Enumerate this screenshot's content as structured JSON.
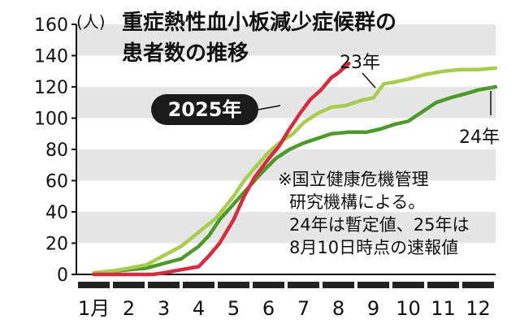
{
  "chart_data": {
    "type": "line",
    "title": "重症熱性血小板減少症候群の患者数の推移",
    "unit_label": "(人)",
    "ylim": [
      0,
      160
    ],
    "yticks": [
      "0",
      "20",
      "40",
      "60",
      "80",
      "100",
      "120",
      "140",
      "160"
    ],
    "month_labels": [
      "1月",
      "2",
      "3",
      "4",
      "5",
      "6",
      "7",
      "8",
      "9",
      "10",
      "11",
      "12"
    ],
    "grid": "alternating horizontal bands",
    "note_lines": [
      "※国立健康危機管理",
      "研究機構による。",
      "24年は暫定値、25年は",
      "8月10日時点の速報値"
    ],
    "series": [
      {
        "name": "24年",
        "color": "#4c9a2a",
        "width": 4.5,
        "points": [
          [
            0,
            1
          ],
          [
            0.5,
            2
          ],
          [
            1,
            3
          ],
          [
            1.5,
            4
          ],
          [
            2,
            7
          ],
          [
            2.5,
            10
          ],
          [
            3,
            18
          ],
          [
            3.3,
            25
          ],
          [
            3.6,
            35
          ],
          [
            4,
            45
          ],
          [
            4.4,
            55
          ],
          [
            4.8,
            65
          ],
          [
            5.2,
            74
          ],
          [
            5.6,
            80
          ],
          [
            6,
            84
          ],
          [
            6.4,
            87
          ],
          [
            6.8,
            90
          ],
          [
            7.3,
            91
          ],
          [
            7.8,
            91
          ],
          [
            8.2,
            93
          ],
          [
            8.6,
            96
          ],
          [
            9,
            98
          ],
          [
            9.4,
            104
          ],
          [
            9.8,
            110
          ],
          [
            10.2,
            113
          ],
          [
            10.7,
            116
          ],
          [
            11,
            118
          ],
          [
            11.5,
            120
          ]
        ]
      },
      {
        "name": "23年",
        "color": "#a8cd4e",
        "width": 4.5,
        "points": [
          [
            0,
            1
          ],
          [
            0.5,
            2
          ],
          [
            1,
            4
          ],
          [
            1.5,
            6
          ],
          [
            2,
            12
          ],
          [
            2.5,
            18
          ],
          [
            3,
            27
          ],
          [
            3.5,
            36
          ],
          [
            4,
            50
          ],
          [
            4.3,
            60
          ],
          [
            4.6,
            68
          ],
          [
            5,
            78
          ],
          [
            5.3,
            84
          ],
          [
            5.7,
            90
          ],
          [
            6,
            97
          ],
          [
            6.4,
            103
          ],
          [
            6.8,
            107
          ],
          [
            7.2,
            108
          ],
          [
            7.6,
            111
          ],
          [
            8,
            113
          ],
          [
            8.3,
            122
          ],
          [
            8.6,
            123
          ],
          [
            9,
            125
          ],
          [
            9.5,
            128
          ],
          [
            10,
            130
          ],
          [
            10.5,
            131
          ],
          [
            11,
            131
          ],
          [
            11.5,
            132
          ]
        ]
      },
      {
        "name": "2025年",
        "color": "#d42d3f",
        "width": 4.5,
        "points": [
          [
            0,
            0
          ],
          [
            1,
            0
          ],
          [
            1.7,
            0
          ],
          [
            2,
            1
          ],
          [
            2.5,
            3
          ],
          [
            3,
            5
          ],
          [
            3.3,
            12
          ],
          [
            3.6,
            20
          ],
          [
            4,
            35
          ],
          [
            4.3,
            50
          ],
          [
            4.6,
            62
          ],
          [
            5,
            74
          ],
          [
            5.3,
            82
          ],
          [
            5.6,
            93
          ],
          [
            5.9,
            103
          ],
          [
            6.2,
            112
          ],
          [
            6.5,
            118
          ],
          [
            6.8,
            126
          ],
          [
            7.0,
            129
          ],
          [
            7.3,
            135
          ]
        ]
      }
    ],
    "labels": {
      "y2023": "23年",
      "y2024": "24年",
      "y2025": "2025年"
    }
  }
}
